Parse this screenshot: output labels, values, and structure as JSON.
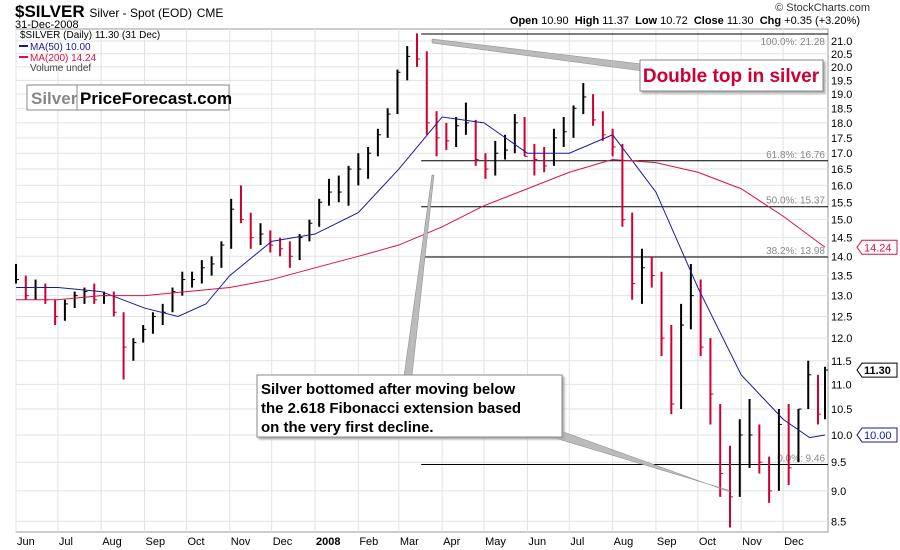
{
  "header": {
    "symbol": "$SILVER",
    "description": "Silver - Spot (EOD)",
    "exchange": "CME",
    "date": "31-Dec-2008",
    "copyright": "© StockCharts.com",
    "ohlc": {
      "open_label": "Open",
      "open": "10.90",
      "high_label": "High",
      "high": "11.37",
      "low_label": "Low",
      "low": "10.72",
      "close_label": "Close",
      "close": "11.30",
      "chg_label": "Chg",
      "chg": "+0.35 (+3.20%)"
    }
  },
  "legend": {
    "price": "$SILVER (Daily) 11.30 (31 Dec)",
    "ma50": "MA(50) 10.00",
    "ma200": "MA(200) 14.24",
    "volume": "Volume undef"
  },
  "logo": {
    "part1": "Silver",
    "part2": "PriceForecast.com"
  },
  "annotations": {
    "double_top": "Double top in silver",
    "bottom_line1": "Silver bottomed after moving below",
    "bottom_line2": "the 2.618 Fibonacci extension based",
    "bottom_line3": "on the very first decline."
  },
  "colors": {
    "up": "#000000",
    "down": "#cc0033",
    "ma50": "#1a1a99",
    "ma200": "#dd1144",
    "annotation_red": "#cc0033"
  },
  "chart_data": {
    "type": "ohlc-bar",
    "yscale": "log",
    "ylim": [
      8.3,
      21.4
    ],
    "grid": true,
    "yticks": [
      "8.5",
      "9.0",
      "9.5",
      "10.0",
      "10.5",
      "11.0",
      "11.5",
      "12.0",
      "12.5",
      "13.0",
      "13.5",
      "14.0",
      "14.5",
      "15.0",
      "15.5",
      "16.0",
      "16.5",
      "17.0",
      "17.5",
      "18.0",
      "18.5",
      "19.0",
      "19.5",
      "20.0",
      "20.5",
      "21.0"
    ],
    "xticks": [
      {
        "label": "Jun",
        "date": "2007-06-01"
      },
      {
        "label": "Jul",
        "date": "2007-07-01"
      },
      {
        "label": "Aug",
        "date": "2007-08-01"
      },
      {
        "label": "Sep",
        "date": "2007-09-01"
      },
      {
        "label": "Oct",
        "date": "2007-10-01"
      },
      {
        "label": "Nov",
        "date": "2007-11-01"
      },
      {
        "label": "Dec",
        "date": "2007-12-01"
      },
      {
        "label": "2008",
        "date": "2008-01-01",
        "bold": true
      },
      {
        "label": "Feb",
        "date": "2008-02-01"
      },
      {
        "label": "Mar",
        "date": "2008-03-01"
      },
      {
        "label": "Apr",
        "date": "2008-04-01"
      },
      {
        "label": "May",
        "date": "2008-05-01"
      },
      {
        "label": "Jun",
        "date": "2008-06-01"
      },
      {
        "label": "Jul",
        "date": "2008-07-01"
      },
      {
        "label": "Aug",
        "date": "2008-08-01"
      },
      {
        "label": "Sep",
        "date": "2008-09-01"
      },
      {
        "label": "Oct",
        "date": "2008-10-01"
      },
      {
        "label": "Nov",
        "date": "2008-11-01"
      },
      {
        "label": "Dec",
        "date": "2008-12-01"
      }
    ],
    "bars_columns": [
      "date",
      "high",
      "low",
      "close"
    ],
    "bars": [
      [
        "2007-06-01",
        13.8,
        13.3,
        13.4
      ],
      [
        "2007-06-08",
        13.5,
        12.9,
        13.0
      ],
      [
        "2007-06-15",
        13.4,
        12.9,
        13.2
      ],
      [
        "2007-06-22",
        13.3,
        12.8,
        12.9
      ],
      [
        "2007-06-29",
        12.9,
        12.3,
        12.5
      ],
      [
        "2007-07-06",
        12.9,
        12.4,
        12.8
      ],
      [
        "2007-07-13",
        13.1,
        12.7,
        13.0
      ],
      [
        "2007-07-20",
        13.2,
        12.8,
        13.1
      ],
      [
        "2007-07-27",
        13.3,
        12.8,
        12.9
      ],
      [
        "2007-08-03",
        13.1,
        12.8,
        13.0
      ],
      [
        "2007-08-10",
        13.1,
        12.5,
        12.6
      ],
      [
        "2007-08-17",
        12.6,
        11.1,
        11.8
      ],
      [
        "2007-08-24",
        12.0,
        11.5,
        11.9
      ],
      [
        "2007-08-31",
        12.3,
        11.9,
        12.2
      ],
      [
        "2007-09-07",
        12.6,
        12.1,
        12.5
      ],
      [
        "2007-09-14",
        12.8,
        12.3,
        12.6
      ],
      [
        "2007-09-21",
        13.2,
        12.6,
        13.1
      ],
      [
        "2007-09-28",
        13.6,
        13.0,
        13.4
      ],
      [
        "2007-10-05",
        13.6,
        13.2,
        13.4
      ],
      [
        "2007-10-12",
        13.9,
        13.3,
        13.7
      ],
      [
        "2007-10-19",
        14.0,
        13.5,
        13.8
      ],
      [
        "2007-10-26",
        14.4,
        13.7,
        14.3
      ],
      [
        "2007-11-02",
        15.6,
        14.2,
        15.3
      ],
      [
        "2007-11-09",
        16.0,
        14.9,
        15.0
      ],
      [
        "2007-11-16",
        15.2,
        14.2,
        14.5
      ],
      [
        "2007-11-23",
        14.9,
        14.3,
        14.6
      ],
      [
        "2007-11-30",
        14.7,
        14.1,
        14.3
      ],
      [
        "2007-12-07",
        14.5,
        14.0,
        14.2
      ],
      [
        "2007-12-14",
        14.4,
        13.7,
        14.0
      ],
      [
        "2007-12-21",
        14.6,
        13.9,
        14.5
      ],
      [
        "2007-12-28",
        15.0,
        14.4,
        14.9
      ],
      [
        "2008-01-04",
        15.6,
        14.8,
        15.5
      ],
      [
        "2008-01-11",
        16.2,
        15.4,
        15.8
      ],
      [
        "2008-01-18",
        16.3,
        15.5,
        15.8
      ],
      [
        "2008-01-25",
        16.6,
        15.4,
        16.5
      ],
      [
        "2008-02-01",
        17.0,
        16.0,
        16.5
      ],
      [
        "2008-02-08",
        17.2,
        16.2,
        17.0
      ],
      [
        "2008-02-15",
        17.8,
        16.9,
        17.6
      ],
      [
        "2008-02-22",
        18.5,
        17.5,
        18.3
      ],
      [
        "2008-02-29",
        19.9,
        18.3,
        19.8
      ],
      [
        "2008-03-07",
        20.8,
        19.5,
        20.4
      ],
      [
        "2008-03-14",
        21.3,
        20.0,
        20.3
      ],
      [
        "2008-03-21",
        20.6,
        17.6,
        18.0
      ],
      [
        "2008-03-28",
        18.4,
        16.9,
        17.5
      ],
      [
        "2008-04-04",
        18.0,
        17.1,
        17.4
      ],
      [
        "2008-04-11",
        18.2,
        17.2,
        17.9
      ],
      [
        "2008-04-18",
        18.7,
        17.6,
        18.0
      ],
      [
        "2008-04-25",
        18.1,
        16.6,
        16.8
      ],
      [
        "2008-05-02",
        17.0,
        16.2,
        16.5
      ],
      [
        "2008-05-09",
        17.4,
        16.3,
        17.0
      ],
      [
        "2008-05-16",
        17.6,
        16.8,
        17.1
      ],
      [
        "2008-05-23",
        18.3,
        17.0,
        18.0
      ],
      [
        "2008-05-30",
        18.2,
        16.9,
        16.9
      ],
      [
        "2008-06-06",
        17.3,
        16.3,
        16.8
      ],
      [
        "2008-06-13",
        17.2,
        16.4,
        16.6
      ],
      [
        "2008-06-20",
        17.8,
        16.6,
        17.5
      ],
      [
        "2008-06-27",
        18.2,
        17.2,
        17.7
      ],
      [
        "2008-07-04",
        18.6,
        17.5,
        18.5
      ],
      [
        "2008-07-11",
        19.4,
        18.3,
        18.9
      ],
      [
        "2008-07-18",
        19.0,
        17.9,
        18.1
      ],
      [
        "2008-07-25",
        18.4,
        17.4,
        17.6
      ],
      [
        "2008-08-01",
        17.8,
        16.9,
        17.2
      ],
      [
        "2008-08-08",
        17.3,
        14.8,
        15.0
      ],
      [
        "2008-08-15",
        15.2,
        12.9,
        13.3
      ],
      [
        "2008-08-22",
        14.2,
        12.8,
        13.7
      ],
      [
        "2008-08-29",
        14.0,
        13.2,
        13.5
      ],
      [
        "2008-09-05",
        13.6,
        11.6,
        12.0
      ],
      [
        "2008-09-12",
        12.3,
        10.4,
        10.6
      ],
      [
        "2008-09-19",
        12.8,
        10.5,
        12.3
      ],
      [
        "2008-09-26",
        13.8,
        12.2,
        13.0
      ],
      [
        "2008-10-03",
        13.4,
        11.6,
        11.8
      ],
      [
        "2008-10-10",
        12.0,
        10.2,
        10.8
      ],
      [
        "2008-10-17",
        10.6,
        8.9,
        9.3
      ],
      [
        "2008-10-24",
        9.8,
        8.4,
        8.9
      ],
      [
        "2008-10-31",
        10.3,
        8.9,
        10.0
      ],
      [
        "2008-11-07",
        10.7,
        9.4,
        10.0
      ],
      [
        "2008-11-14",
        10.2,
        9.3,
        9.5
      ],
      [
        "2008-11-21",
        9.6,
        8.8,
        9.0
      ],
      [
        "2008-11-28",
        10.5,
        9.0,
        10.2
      ],
      [
        "2008-12-05",
        10.6,
        9.1,
        9.4
      ],
      [
        "2008-12-12",
        10.5,
        9.5,
        10.5
      ],
      [
        "2008-12-19",
        11.5,
        10.5,
        11.2
      ],
      [
        "2008-12-26",
        11.2,
        10.2,
        10.4
      ],
      [
        "2008-12-31",
        11.37,
        10.3,
        11.3
      ]
    ],
    "ma50": [
      [
        "2007-06-01",
        13.2
      ],
      [
        "2007-07-01",
        13.2
      ],
      [
        "2007-08-01",
        13.1
      ],
      [
        "2007-09-01",
        12.7
      ],
      [
        "2007-09-25",
        12.5
      ],
      [
        "2007-10-15",
        12.8
      ],
      [
        "2007-11-01",
        13.5
      ],
      [
        "2007-12-01",
        14.4
      ],
      [
        "2008-01-01",
        14.6
      ],
      [
        "2008-02-01",
        15.2
      ],
      [
        "2008-03-01",
        16.5
      ],
      [
        "2008-04-01",
        18.2
      ],
      [
        "2008-05-01",
        18.0
      ],
      [
        "2008-06-01",
        17.0
      ],
      [
        "2008-07-01",
        17.0
      ],
      [
        "2008-08-01",
        17.6
      ],
      [
        "2008-09-01",
        15.8
      ],
      [
        "2008-10-01",
        13.2
      ],
      [
        "2008-11-01",
        11.2
      ],
      [
        "2008-12-01",
        10.3
      ],
      [
        "2008-12-20",
        9.95
      ],
      [
        "2008-12-31",
        10.0
      ]
    ],
    "ma200": [
      [
        "2007-06-01",
        12.9
      ],
      [
        "2007-07-01",
        12.9
      ],
      [
        "2007-08-01",
        13.0
      ],
      [
        "2007-09-01",
        13.0
      ],
      [
        "2007-10-01",
        13.1
      ],
      [
        "2007-11-01",
        13.2
      ],
      [
        "2007-12-01",
        13.4
      ],
      [
        "2008-01-01",
        13.7
      ],
      [
        "2008-02-01",
        14.0
      ],
      [
        "2008-03-01",
        14.3
      ],
      [
        "2008-04-01",
        14.8
      ],
      [
        "2008-05-01",
        15.4
      ],
      [
        "2008-06-01",
        15.9
      ],
      [
        "2008-07-01",
        16.4
      ],
      [
        "2008-08-01",
        16.8
      ],
      [
        "2008-09-01",
        16.7
      ],
      [
        "2008-10-01",
        16.4
      ],
      [
        "2008-11-01",
        15.9
      ],
      [
        "2008-12-01",
        15.1
      ],
      [
        "2008-12-31",
        14.24
      ]
    ],
    "fib_levels": [
      {
        "label": "100.0%: 21.28",
        "value": 21.28
      },
      {
        "label": "61.8%: 16.76",
        "value": 16.76
      },
      {
        "label": "50.0%: 15.37",
        "value": 15.37
      },
      {
        "label": "38.2%: 13.98",
        "value": 13.98
      },
      {
        "label": "0.0%: 9.46",
        "value": 9.46
      }
    ],
    "fib_start": "2008-03-17",
    "last_values": [
      {
        "label": "14.24",
        "value": 14.24,
        "series": "ma200"
      },
      {
        "label": "11.30",
        "value": 11.3,
        "series": "price"
      },
      {
        "label": "10.00",
        "value": 10.0,
        "series": "ma50"
      }
    ]
  }
}
